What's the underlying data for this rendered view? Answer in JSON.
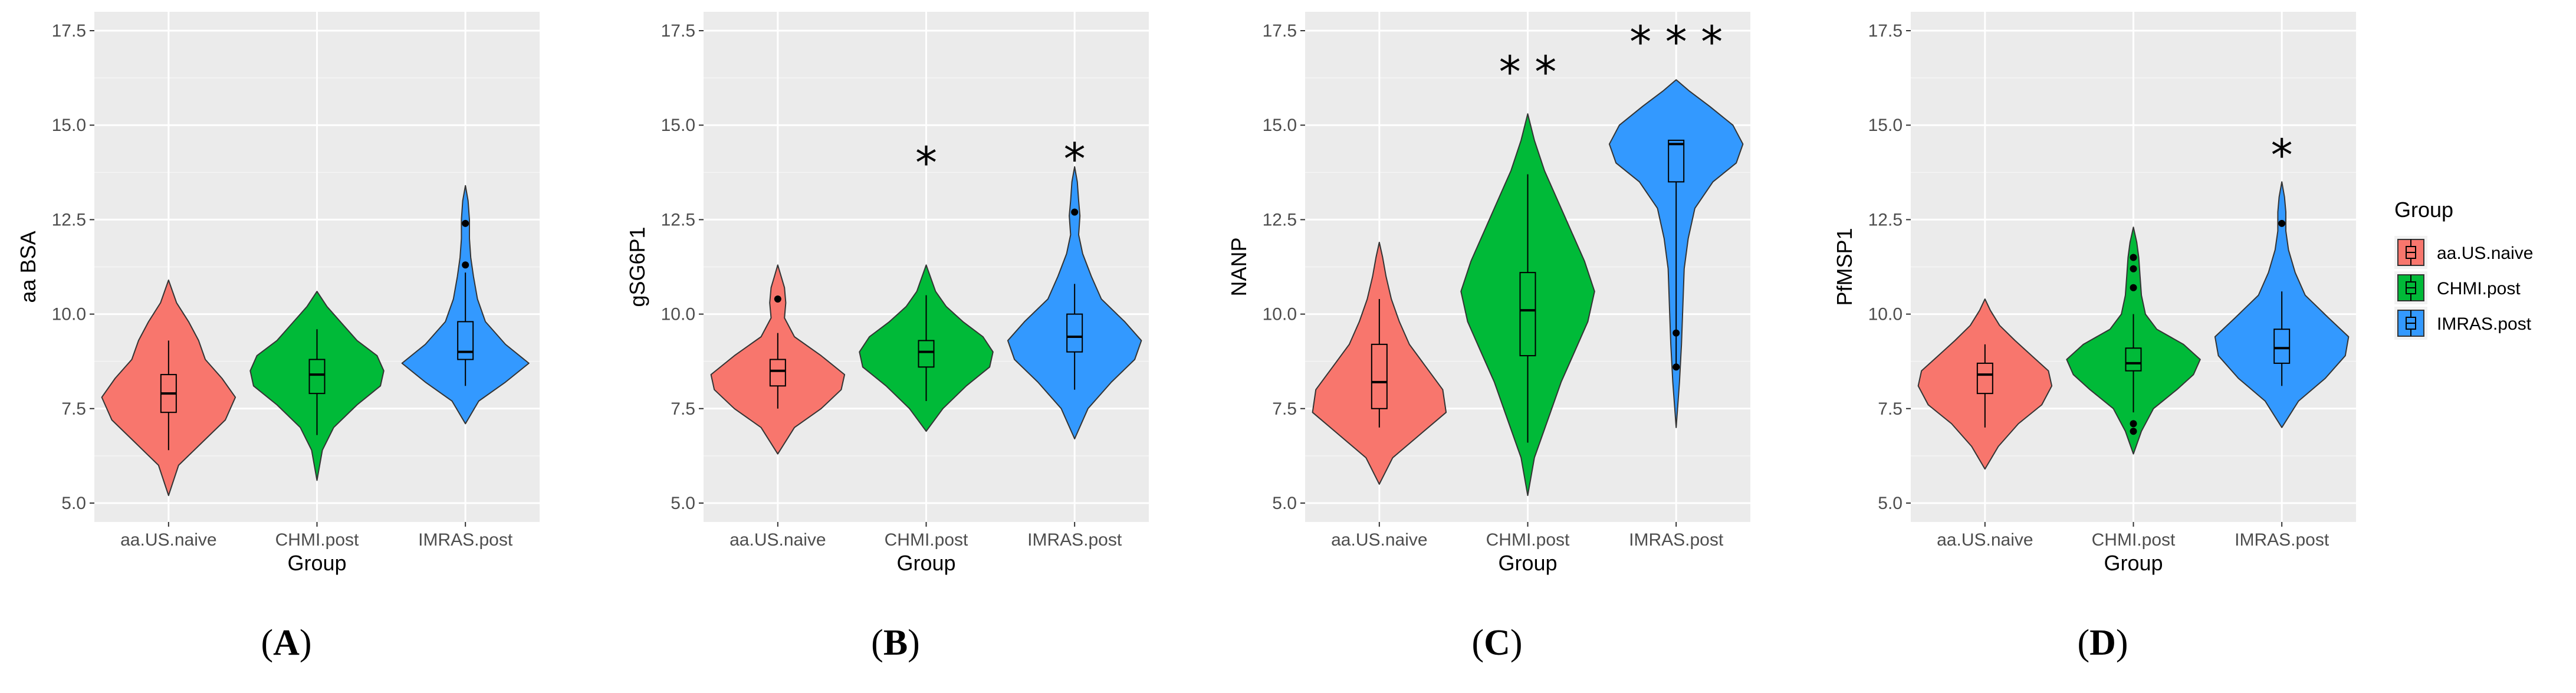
{
  "figure": {
    "caption_open": "(",
    "caption_close": ")"
  },
  "legend": {
    "title": "Group",
    "entries": [
      {
        "label": "aa.US.naive",
        "color": "#F8766D"
      },
      {
        "label": "CHMI.post",
        "color": "#00BA38"
      },
      {
        "label": "IMRAS.post",
        "color": "#3399FF"
      }
    ]
  },
  "chart_data": [
    {
      "type": "violin",
      "panel_label": "A",
      "ylabel": "aa BSA",
      "xlabel": "Group",
      "categories": [
        "aa.US.naive",
        "CHMI.post",
        "IMRAS.post"
      ],
      "ylim": [
        4.5,
        18
      ],
      "yticks": [
        "5.0",
        "7.5",
        "10.0",
        "12.5",
        "15.0",
        "17.5"
      ],
      "yticks_values": [
        5.0,
        7.5,
        10.0,
        12.5,
        15.0,
        17.5
      ],
      "groups": [
        {
          "name": "aa.US.naive",
          "color": "#F8766D",
          "min": 5.2,
          "max": 10.9,
          "density_y": [
            5.2,
            6.0,
            6.6,
            7.2,
            7.8,
            8.3,
            8.8,
            9.3,
            9.8,
            10.3,
            10.9
          ],
          "density_w": [
            0.0,
            0.15,
            0.5,
            0.85,
            1.0,
            0.8,
            0.55,
            0.45,
            0.3,
            0.12,
            0.0
          ],
          "box": {
            "min": 6.4,
            "q1": 7.4,
            "median": 7.9,
            "q3": 8.4,
            "max": 9.3
          },
          "outliers": []
        },
        {
          "name": "CHMI.post",
          "color": "#00BA38",
          "min": 5.6,
          "max": 10.6,
          "density_y": [
            5.6,
            6.4,
            7.0,
            7.6,
            8.1,
            8.5,
            8.9,
            9.3,
            9.8,
            10.2,
            10.6
          ],
          "density_w": [
            0.0,
            0.08,
            0.25,
            0.6,
            0.95,
            1.0,
            0.9,
            0.6,
            0.35,
            0.15,
            0.0
          ],
          "box": {
            "min": 6.8,
            "q1": 7.9,
            "median": 8.4,
            "q3": 8.8,
            "max": 9.6
          },
          "outliers": []
        },
        {
          "name": "IMRAS.post",
          "color": "#3399FF",
          "min": 7.1,
          "max": 13.4,
          "density_y": [
            7.1,
            7.7,
            8.2,
            8.7,
            9.2,
            9.8,
            10.4,
            11.0,
            11.5,
            12.0,
            12.5,
            13.0,
            13.4
          ],
          "density_w": [
            0.0,
            0.2,
            0.6,
            0.95,
            0.6,
            0.3,
            0.18,
            0.12,
            0.08,
            0.06,
            0.06,
            0.04,
            0.0
          ],
          "box": {
            "min": 8.1,
            "q1": 8.8,
            "median": 9.0,
            "q3": 9.8,
            "max": 11.1
          },
          "outliers": [
            11.3,
            12.4
          ]
        }
      ],
      "significance": []
    },
    {
      "type": "violin",
      "panel_label": "B",
      "ylabel": "gSG6P1",
      "xlabel": "Group",
      "categories": [
        "aa.US.naive",
        "CHMI.post",
        "IMRAS.post"
      ],
      "ylim": [
        4.5,
        18
      ],
      "yticks": [
        "5.0",
        "7.5",
        "10.0",
        "12.5",
        "15.0",
        "17.5"
      ],
      "yticks_values": [
        5.0,
        7.5,
        10.0,
        12.5,
        15.0,
        17.5
      ],
      "groups": [
        {
          "name": "aa.US.naive",
          "color": "#F8766D",
          "min": 6.3,
          "max": 11.3,
          "density_y": [
            6.3,
            7.0,
            7.5,
            8.0,
            8.4,
            8.9,
            9.4,
            9.9,
            10.3,
            10.7,
            11.0,
            11.3
          ],
          "density_w": [
            0.0,
            0.25,
            0.65,
            0.95,
            1.0,
            0.65,
            0.25,
            0.1,
            0.12,
            0.1,
            0.05,
            0.0
          ],
          "box": {
            "min": 7.5,
            "q1": 8.1,
            "median": 8.5,
            "q3": 8.8,
            "max": 9.5
          },
          "outliers": [
            10.4
          ]
        },
        {
          "name": "CHMI.post",
          "color": "#00BA38",
          "min": 6.9,
          "max": 11.3,
          "density_y": [
            6.9,
            7.5,
            8.1,
            8.6,
            9.0,
            9.4,
            9.8,
            10.2,
            10.6,
            11.0,
            11.3
          ],
          "density_w": [
            0.0,
            0.25,
            0.6,
            0.95,
            1.0,
            0.85,
            0.55,
            0.3,
            0.14,
            0.06,
            0.0
          ],
          "box": {
            "min": 7.7,
            "q1": 8.6,
            "median": 9.0,
            "q3": 9.3,
            "max": 10.5
          },
          "outliers": []
        },
        {
          "name": "IMRAS.post",
          "color": "#3399FF",
          "min": 6.7,
          "max": 13.9,
          "density_y": [
            6.7,
            7.5,
            8.2,
            8.8,
            9.3,
            9.8,
            10.4,
            11.0,
            11.6,
            12.1,
            12.6,
            13.0,
            13.5,
            13.9
          ],
          "density_w": [
            0.0,
            0.2,
            0.55,
            0.9,
            1.0,
            0.75,
            0.4,
            0.25,
            0.12,
            0.06,
            0.08,
            0.06,
            0.04,
            0.0
          ],
          "box": {
            "min": 8.0,
            "q1": 9.0,
            "median": 9.4,
            "q3": 10.0,
            "max": 10.8
          },
          "outliers": [
            12.7
          ]
        }
      ],
      "significance": [
        {
          "group": "CHMI.post",
          "text": "*",
          "y": 14.2
        },
        {
          "group": "IMRAS.post",
          "text": "*",
          "y": 14.3
        }
      ]
    },
    {
      "type": "violin",
      "panel_label": "C",
      "ylabel": "NANP",
      "xlabel": "Group",
      "categories": [
        "aa.US.naive",
        "CHMI.post",
        "IMRAS.post"
      ],
      "ylim": [
        4.5,
        18
      ],
      "yticks": [
        "5.0",
        "7.5",
        "10.0",
        "12.5",
        "15.0",
        "17.5"
      ],
      "yticks_values": [
        5.0,
        7.5,
        10.0,
        12.5,
        15.0,
        17.5
      ],
      "groups": [
        {
          "name": "aa.US.naive",
          "color": "#F8766D",
          "min": 5.5,
          "max": 11.9,
          "density_y": [
            5.5,
            6.2,
            6.8,
            7.4,
            8.0,
            8.6,
            9.2,
            9.8,
            10.4,
            11.0,
            11.5,
            11.9
          ],
          "density_w": [
            0.0,
            0.2,
            0.6,
            1.0,
            0.95,
            0.7,
            0.45,
            0.3,
            0.18,
            0.1,
            0.05,
            0.0
          ],
          "box": {
            "min": 7.0,
            "q1": 7.5,
            "median": 8.2,
            "q3": 9.2,
            "max": 10.4
          },
          "outliers": []
        },
        {
          "name": "CHMI.post",
          "color": "#00BA38",
          "min": 5.2,
          "max": 15.3,
          "density_y": [
            5.2,
            6.2,
            7.2,
            8.2,
            9.0,
            9.8,
            10.6,
            11.4,
            12.2,
            13.0,
            13.8,
            14.6,
            15.3
          ],
          "density_w": [
            0.0,
            0.1,
            0.3,
            0.5,
            0.7,
            0.9,
            1.0,
            0.85,
            0.65,
            0.45,
            0.25,
            0.1,
            0.0
          ],
          "box": {
            "min": 6.6,
            "q1": 8.9,
            "median": 10.1,
            "q3": 11.1,
            "max": 13.7
          },
          "outliers": []
        },
        {
          "name": "IMRAS.post",
          "color": "#3399FF",
          "min": 7.0,
          "max": 16.2,
          "density_y": [
            7.0,
            8.2,
            9.2,
            10.2,
            11.2,
            12.0,
            12.8,
            13.5,
            14.0,
            14.5,
            15.0,
            15.5,
            15.9,
            16.2
          ],
          "density_w": [
            0.0,
            0.05,
            0.08,
            0.1,
            0.12,
            0.18,
            0.28,
            0.55,
            0.9,
            1.0,
            0.85,
            0.5,
            0.2,
            0.0
          ],
          "box": {
            "min": 8.6,
            "q1": 13.5,
            "median": 14.5,
            "q3": 14.6,
            "max": 14.6
          },
          "outliers": [
            9.5,
            8.6
          ]
        }
      ],
      "significance": [
        {
          "group": "CHMI.post",
          "text": "* *",
          "y": 16.6
        },
        {
          "group": "IMRAS.post",
          "text": "* * *",
          "y": 17.4
        }
      ]
    },
    {
      "type": "violin",
      "panel_label": "D",
      "ylabel": "PfMSP1",
      "xlabel": "Group",
      "categories": [
        "aa.US.naive",
        "CHMI.post",
        "IMRAS.post"
      ],
      "ylim": [
        4.5,
        18
      ],
      "yticks": [
        "5.0",
        "7.5",
        "10.0",
        "12.5",
        "15.0",
        "17.5"
      ],
      "yticks_values": [
        5.0,
        7.5,
        10.0,
        12.5,
        15.0,
        17.5
      ],
      "groups": [
        {
          "name": "aa.US.naive",
          "color": "#F8766D",
          "min": 5.9,
          "max": 10.4,
          "density_y": [
            5.9,
            6.5,
            7.1,
            7.6,
            8.1,
            8.5,
            8.9,
            9.3,
            9.7,
            10.1,
            10.4
          ],
          "density_w": [
            0.0,
            0.2,
            0.5,
            0.85,
            1.0,
            0.95,
            0.7,
            0.45,
            0.22,
            0.08,
            0.0
          ],
          "box": {
            "min": 7.0,
            "q1": 7.9,
            "median": 8.4,
            "q3": 8.7,
            "max": 9.2
          },
          "outliers": []
        },
        {
          "name": "CHMI.post",
          "color": "#00BA38",
          "min": 6.3,
          "max": 12.3,
          "density_y": [
            6.3,
            6.9,
            7.5,
            8.0,
            8.4,
            8.8,
            9.2,
            9.6,
            10.0,
            10.5,
            11.0,
            11.5,
            11.9,
            12.3
          ],
          "density_w": [
            0.0,
            0.12,
            0.3,
            0.65,
            0.9,
            1.0,
            0.75,
            0.35,
            0.18,
            0.12,
            0.1,
            0.08,
            0.05,
            0.0
          ],
          "box": {
            "min": 7.4,
            "q1": 8.5,
            "median": 8.7,
            "q3": 9.1,
            "max": 10.0
          },
          "outliers": [
            7.1,
            6.9,
            10.7,
            11.2,
            11.5
          ]
        },
        {
          "name": "IMRAS.post",
          "color": "#3399FF",
          "min": 7.0,
          "max": 13.5,
          "density_y": [
            7.0,
            7.7,
            8.3,
            8.9,
            9.4,
            9.9,
            10.5,
            11.1,
            11.7,
            12.2,
            12.7,
            13.1,
            13.5
          ],
          "density_w": [
            0.0,
            0.25,
            0.65,
            0.95,
            1.0,
            0.7,
            0.35,
            0.2,
            0.1,
            0.06,
            0.06,
            0.04,
            0.0
          ],
          "box": {
            "min": 8.1,
            "q1": 8.7,
            "median": 9.1,
            "q3": 9.6,
            "max": 10.6
          },
          "outliers": [
            12.4
          ]
        }
      ],
      "significance": [
        {
          "group": "IMRAS.post",
          "text": "*",
          "y": 14.4
        }
      ]
    }
  ]
}
